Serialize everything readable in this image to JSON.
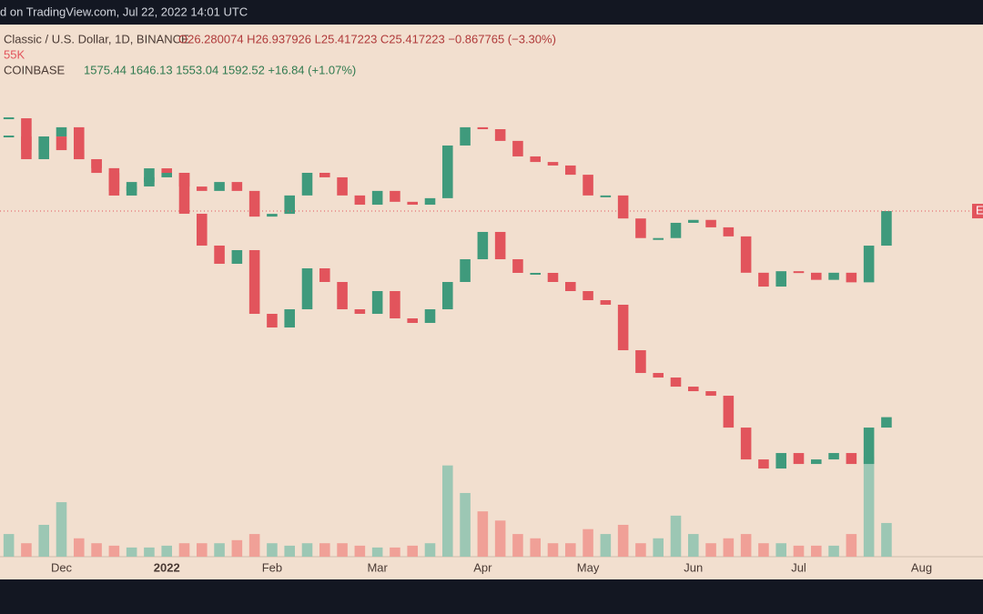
{
  "header": "d on TradingView.com, Jul 22, 2022 14:01 UTC",
  "chart_data": {
    "type": "candlestick",
    "categories": [
      null,
      null,
      null,
      "Dec",
      null,
      null,
      null,
      null,
      null,
      "2022",
      null,
      null,
      null,
      null,
      null,
      "Feb",
      null,
      null,
      null,
      null,
      null,
      "Mar",
      null,
      null,
      null,
      null,
      null,
      "Apr",
      null,
      null,
      null,
      null,
      null,
      "May",
      null,
      null,
      null,
      null,
      null,
      "Jun",
      null,
      null,
      null,
      null,
      null,
      "Jul",
      null,
      null,
      null,
      null,
      null,
      null,
      "Aug",
      null,
      null,
      null
    ],
    "series": [
      {
        "name": "Classic / U.S. Dollar, 1D, BINANCE",
        "legend_text": "O26.280074 H26.937926 L25.417223 C25.417223 −0.867765 (−3.30%)",
        "up_color": "#3f9a7c",
        "down_color": "#e2545c",
        "log_scale": true,
        "ylim": [
          1.2,
          130
        ],
        "values": [
          49.3,
          40.3,
          49.3,
          53.5,
          40.3,
          37.2,
          30.4,
          32.9,
          34.3,
          35.7,
          31.6,
          30.4,
          32.9,
          30.4,
          24.2,
          24.8,
          29.2,
          35.7,
          34.3,
          29.2,
          26.9,
          30.4,
          27.6,
          26.9,
          28.5,
          45.5,
          53.5,
          52.6,
          47.4,
          41.3,
          39.3,
          38.1,
          35.1,
          29.2,
          29.2,
          23.8,
          20.0,
          20.0,
          22.9,
          23.5,
          22.0,
          20.3,
          14.7,
          13.0,
          14.9,
          14.7,
          13.8,
          14.7,
          13.5,
          18.7,
          25.42,
          null,
          null,
          null,
          null,
          null
        ]
      },
      {
        "name": "COINBASE",
        "legend_text": "1575.44 1646.13 1553.04 1592.52 +16.84 (+1.07%)",
        "up_color": "#3f9a7c",
        "down_color": "#e2545c",
        "log_scale": false,
        "ylim": [
          170,
          5620
        ],
        "values": [
          4680,
          4351,
          4492,
          4351,
          4257,
          4116,
          3882,
          3976,
          4163,
          4116,
          3694,
          3365,
          3177,
          3318,
          2660,
          2519,
          2707,
          3130,
          2989,
          2707,
          2660,
          2895,
          2613,
          2566,
          2707,
          2989,
          3224,
          3506,
          3224,
          3083,
          3083,
          2989,
          2895,
          2801,
          2754,
          2284,
          2049,
          2002,
          1908,
          1861,
          1814,
          1485,
          1156,
          1062,
          1222,
          1109,
          1156,
          1222,
          1109,
          1485,
          1592.52,
          null,
          null,
          null,
          null,
          null
        ]
      }
    ],
    "volume": {
      "ylim": [
        0,
        300000
      ],
      "up_color": "#9cc7b4",
      "down_color": "#f0a097",
      "values": [
        37000,
        22000,
        52000,
        89000,
        30000,
        22000,
        18000,
        15000,
        15000,
        18000,
        22000,
        22000,
        22000,
        27000,
        37000,
        22000,
        18000,
        22000,
        22000,
        22000,
        18000,
        15000,
        15000,
        18000,
        22000,
        149000,
        104000,
        74000,
        59000,
        37000,
        30000,
        22000,
        22000,
        45000,
        37000,
        52000,
        22000,
        30000,
        67000,
        37000,
        22000,
        30000,
        37000,
        22000,
        22000,
        18000,
        18000,
        18000,
        37000,
        163000,
        55000,
        null,
        null,
        null,
        null,
        null
      ],
      "value_labels": [
        null,
        null,
        null,
        null,
        null,
        null,
        null,
        null,
        null,
        null,
        null,
        null,
        null,
        null,
        null,
        null,
        null,
        null,
        null,
        null,
        null,
        null,
        null,
        null,
        null,
        null,
        null,
        null,
        null,
        null,
        null,
        null,
        null,
        null,
        null,
        null,
        null,
        null,
        null,
        null,
        null,
        null,
        null,
        null,
        null,
        null,
        null,
        null,
        null,
        null,
        "55K",
        null,
        null,
        null,
        null,
        null
      ]
    },
    "price_label": "E"
  }
}
